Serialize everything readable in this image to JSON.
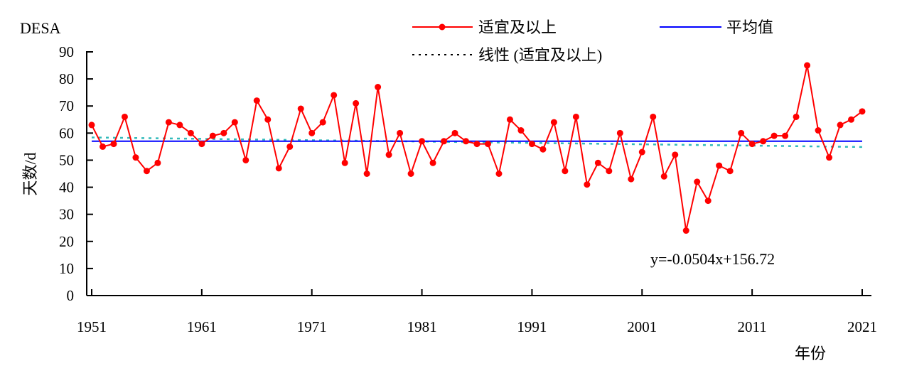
{
  "chart_data": {
    "type": "line",
    "title": "DESA",
    "xlabel": "年份",
    "ylabel": "天数/d",
    "xlim": [
      1951,
      2021
    ],
    "ylim": [
      0,
      90
    ],
    "x_ticks": [
      "1951",
      "1961",
      "1971",
      "1981",
      "1991",
      "2001",
      "2011",
      "2021"
    ],
    "y_ticks": [
      "0",
      "10",
      "20",
      "30",
      "40",
      "50",
      "60",
      "70",
      "80",
      "90"
    ],
    "legend": {
      "placement": "top",
      "entries": [
        "适宜及以上",
        "平均值",
        "线性 (适宜及以上)"
      ]
    },
    "x": [
      1951,
      1952,
      1953,
      1954,
      1955,
      1956,
      1957,
      1958,
      1959,
      1960,
      1961,
      1962,
      1963,
      1964,
      1965,
      1966,
      1967,
      1968,
      1969,
      1970,
      1971,
      1972,
      1973,
      1974,
      1975,
      1976,
      1977,
      1978,
      1979,
      1980,
      1981,
      1982,
      1983,
      1984,
      1985,
      1986,
      1987,
      1988,
      1989,
      1990,
      1991,
      1992,
      1993,
      1994,
      1995,
      1996,
      1997,
      1998,
      1999,
      2000,
      2001,
      2002,
      2003,
      2004,
      2005,
      2006,
      2007,
      2008,
      2009,
      2010,
      2011,
      2012,
      2013,
      2014,
      2015,
      2016,
      2017,
      2018,
      2019,
      2020,
      2021
    ],
    "series": [
      {
        "name": "适宜及以上",
        "color": "#ff0000",
        "values": [
          63,
          55,
          56,
          66,
          51,
          46,
          49,
          64,
          63,
          60,
          56,
          59,
          60,
          64,
          50,
          72,
          65,
          47,
          55,
          69,
          60,
          64,
          74,
          49,
          71,
          45,
          77,
          52,
          60,
          45,
          57,
          49,
          57,
          60,
          57,
          56,
          56,
          45,
          65,
          61,
          56,
          54,
          64,
          46,
          66,
          41,
          49,
          46,
          60,
          43,
          53,
          66,
          44,
          52,
          24,
          42,
          35,
          48,
          46,
          60,
          56,
          57,
          59,
          59,
          66,
          85,
          61,
          51,
          63,
          65,
          68
        ]
      },
      {
        "name": "平均值",
        "color": "#0000ff",
        "value": 57
      },
      {
        "name": "线性 (适宜及以上)",
        "color": "#33bbbb",
        "slope": -0.0504,
        "intercept": 156.72
      }
    ],
    "annotation": "y=-0.0504x+156.72"
  }
}
